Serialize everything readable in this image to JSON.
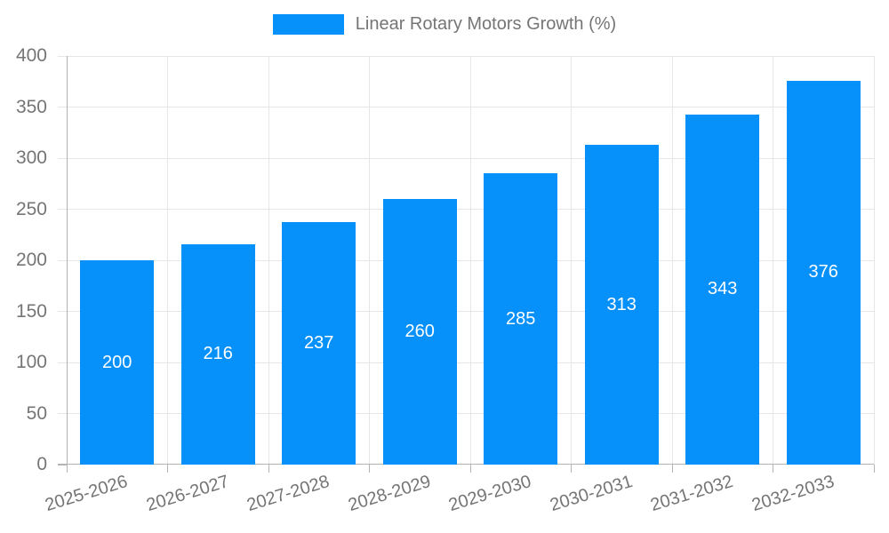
{
  "chart_data": {
    "type": "bar",
    "title": "",
    "legend": {
      "label": "Linear Rotary Motors Growth (%)",
      "position": "top"
    },
    "categories": [
      "2025-2026",
      "2026-2027",
      "2027-2028",
      "2028-2029",
      "2029-2030",
      "2030-2031",
      "2031-2032",
      "2032-2033"
    ],
    "series": [
      {
        "name": "Linear Rotary Motors Growth (%)",
        "values": [
          200,
          216,
          237,
          260,
          285,
          313,
          343,
          376
        ]
      }
    ],
    "show_value_labels": true,
    "xlabel": "",
    "ylabel": "",
    "ylim": [
      0,
      400
    ],
    "yticks": [
      0,
      50,
      100,
      150,
      200,
      250,
      300,
      350,
      400
    ],
    "grid": {
      "horizontal": true,
      "vertical": true
    },
    "x_label_rotation_deg": -17,
    "colors": {
      "bar": "#0590fa",
      "value_label": "#ffffff",
      "axis_text": "#757575",
      "gridline": "#e6e6e6",
      "axis_line": "#b3b3b3"
    }
  }
}
